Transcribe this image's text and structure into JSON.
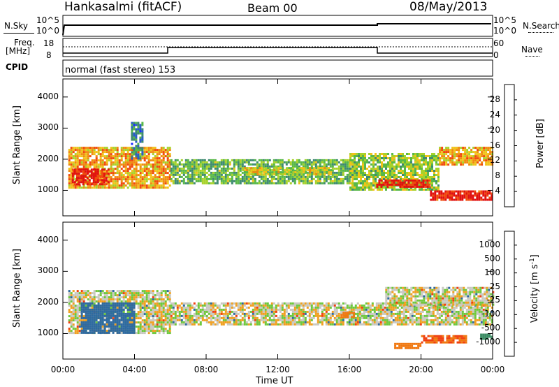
{
  "header": {
    "title_left": "Hankasalmi (fitACF)",
    "title_center": "Beam 00",
    "title_right": "08/May/2013"
  },
  "strips": {
    "nsky_label": "N.Sky",
    "nsky_ticks": [
      "10^5",
      "10^0"
    ],
    "nsearch_label": "N.Search",
    "nsearch_ticks": [
      "10^5",
      "10^0"
    ],
    "freq_label_1": "Freq.",
    "freq_label_2": "[MHz]",
    "freq_ticks": [
      "18",
      "8"
    ],
    "nave_label": "Nave",
    "nave_ticks": [
      "60",
      "0"
    ],
    "cpid_label": "CPID",
    "cpid_text": "normal (fast stereo) 153"
  },
  "chart_data": [
    {
      "type": "heatmap",
      "name": "power",
      "ylabel": "Slant Range [km]",
      "xlabel": "Time UT",
      "ylim": [
        180,
        4580
      ],
      "yticks": [
        1000,
        2000,
        3000,
        4000
      ],
      "xticks": [
        "00:00",
        "04:00",
        "08:00",
        "12:00",
        "16:00",
        "20:00",
        "00:00"
      ],
      "xlim_hours": [
        0,
        24
      ],
      "colorbar": {
        "label": "Power [dB]",
        "ticks": [
          "4",
          "8",
          "12",
          "16",
          "20",
          "24",
          "28"
        ],
        "colors": [
          "#1a2cff",
          "#2a5ec8",
          "#3e8a70",
          "#58b848",
          "#a8d22a",
          "#f0c21a",
          "#f08a10",
          "#f04a0c",
          "#e01010"
        ]
      },
      "bands": [
        {
          "t0": 0.3,
          "t1": 6.0,
          "r0": 1100,
          "r1": 2400,
          "value": 20
        },
        {
          "t0": 0.5,
          "t1": 2.5,
          "r0": 1200,
          "r1": 1700,
          "value": 28
        },
        {
          "t0": 6.0,
          "t1": 16.0,
          "r0": 1250,
          "r1": 2000,
          "value": 12
        },
        {
          "t0": 10.0,
          "t1": 15.0,
          "r0": 1500,
          "r1": 1750,
          "value": 16
        },
        {
          "t0": 16.0,
          "t1": 21.0,
          "r0": 1000,
          "r1": 2200,
          "value": 14
        },
        {
          "t0": 17.5,
          "t1": 20.5,
          "r0": 1100,
          "r1": 1350,
          "value": 28
        },
        {
          "t0": 20.5,
          "t1": 24.0,
          "r0": 700,
          "r1": 1000,
          "value": 28
        },
        {
          "t0": 21.0,
          "t1": 24.0,
          "r0": 1800,
          "r1": 2400,
          "value": 20
        },
        {
          "t0": 3.8,
          "t1": 4.4,
          "r0": 2000,
          "r1": 3200,
          "value": 8
        }
      ]
    },
    {
      "type": "heatmap",
      "name": "velocity",
      "ylabel": "Slant Range [km]",
      "xlabel": "Time UT",
      "ylim": [
        180,
        4580
      ],
      "yticks": [
        1000,
        2000,
        3000,
        4000
      ],
      "xticks": [
        "00:00",
        "04:00",
        "08:00",
        "12:00",
        "16:00",
        "20:00",
        "00:00"
      ],
      "xlim_hours": [
        0,
        24
      ],
      "colorbar": {
        "label": "Velocity [m s",
        "label_sup": "-1",
        "label_end": "]",
        "ticks": [
          "1000",
          "500",
          "100",
          "25",
          "-25",
          "-100",
          "-500",
          "-1000"
        ],
        "colors": [
          "#2a3cc8",
          "#2e6aa0",
          "#3c8c64",
          "#6ec83c",
          "#c8c8c0",
          "#f0a020",
          "#f07810",
          "#f04010",
          "#e01010"
        ]
      },
      "bands": [
        {
          "t0": 0.3,
          "t1": 6.0,
          "r0": 1000,
          "r1": 2400,
          "value": 0
        },
        {
          "t0": 1.0,
          "t1": 4.0,
          "r0": 1000,
          "r1": 2000,
          "value": 500
        },
        {
          "t0": 6.0,
          "t1": 24.0,
          "r0": 1300,
          "r1": 2000,
          "value": 0
        },
        {
          "t0": 18.0,
          "t1": 24.0,
          "r0": 1900,
          "r1": 2500,
          "value": 0
        },
        {
          "t0": 15.5,
          "t1": 16.3,
          "r0": 1500,
          "r1": 1700,
          "value": -200
        },
        {
          "t0": 18.5,
          "t1": 20.0,
          "r0": 550,
          "r1": 700,
          "value": -200
        },
        {
          "t0": 20.0,
          "t1": 22.5,
          "r0": 700,
          "r1": 950,
          "value": -300
        },
        {
          "t0": 23.3,
          "t1": 24.0,
          "r0": 800,
          "r1": 1000,
          "value": 100
        }
      ]
    }
  ]
}
